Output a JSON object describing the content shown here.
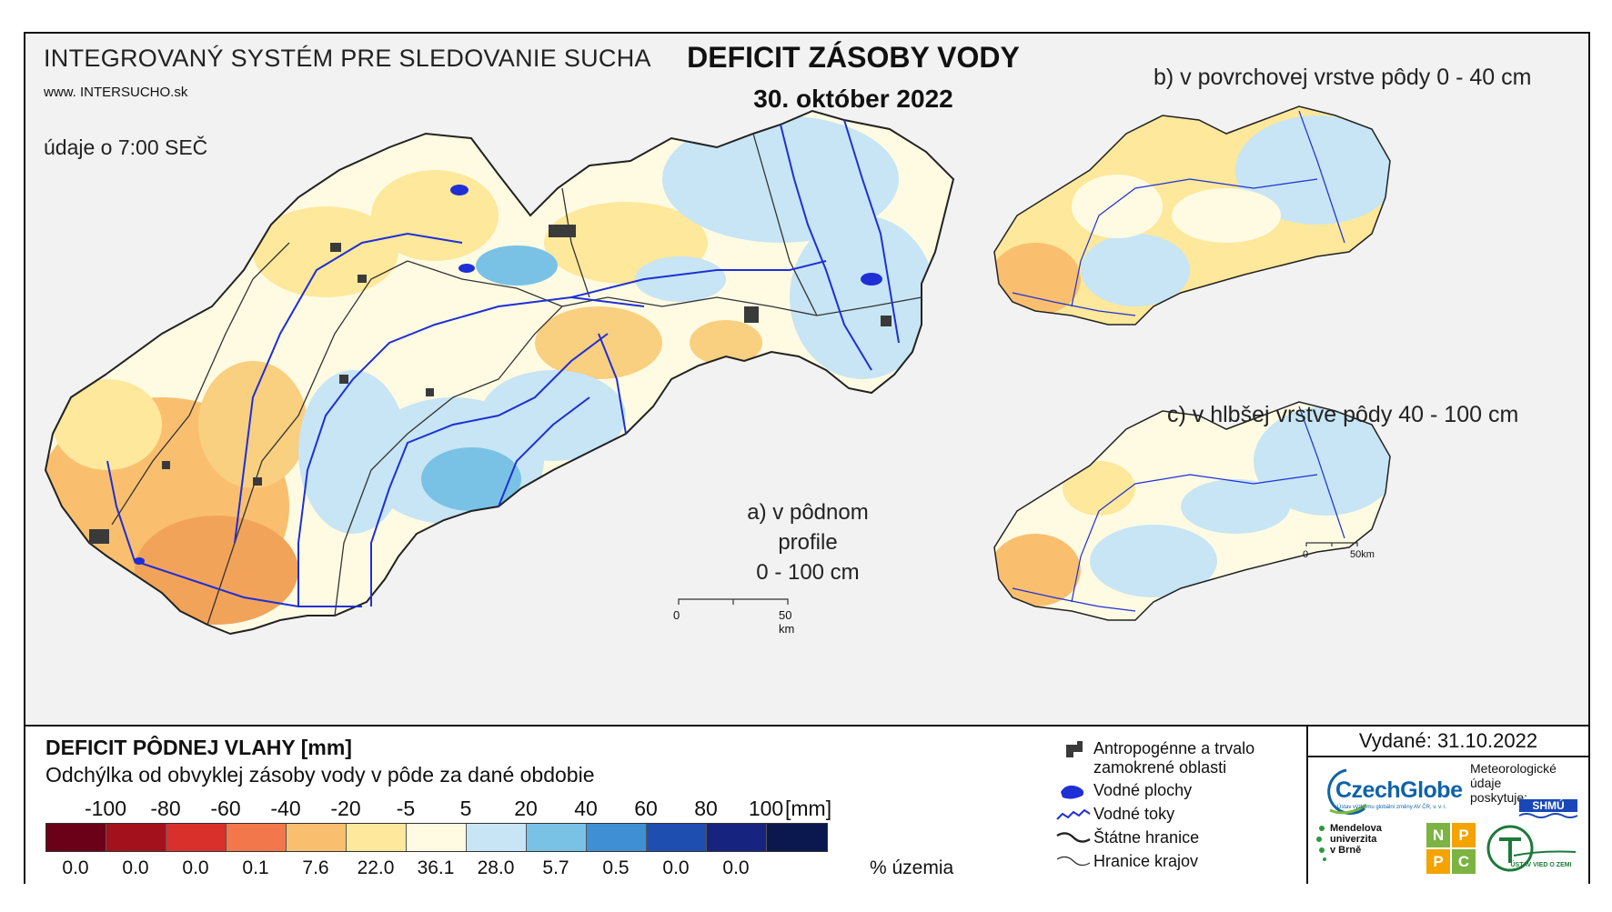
{
  "header": {
    "system_name": "INTEGROVANÝ SYSTÉM PRE SLEDOVANIE SUCHA",
    "url_prefix": "www.",
    "url_main": "INTERSUCHO.sk",
    "data_time": "údaje o 7:00 SEČ",
    "title": "DEFICIT ZÁSOBY VODY",
    "date": "30. október 2022"
  },
  "maps": {
    "a_label_line1": "a) v pôdnom profile",
    "a_label_line2": "0 - 100 cm",
    "b_label": "b) v povrchovej vrstve pôdy 0 - 40 cm",
    "c_label": "c) v hlbšej vrstve pôdy 40 - 100 cm",
    "scale_main": {
      "zero": "0",
      "end": "50 km"
    },
    "scale_small": {
      "zero": "0",
      "end": "50km"
    }
  },
  "legend": {
    "title": "DEFICIT PÔDNEJ VLAHY [mm]",
    "subtitle": "Odchýlka od obvyklej zásoby vody v pôde za dané obdobie",
    "ticks": [
      "-100",
      "-80",
      "-60",
      "-40",
      "-20",
      "-5",
      "5",
      "20",
      "40",
      "60",
      "80",
      "100"
    ],
    "unit": "[mm]",
    "classes": [
      {
        "color": "#6b0019",
        "pct": "0.0"
      },
      {
        "color": "#a3111d",
        "pct": "0.0"
      },
      {
        "color": "#d9302b",
        "pct": "0.0"
      },
      {
        "color": "#f2774a",
        "pct": "0.1"
      },
      {
        "color": "#f9bf6f",
        "pct": "7.6"
      },
      {
        "color": "#fde89b",
        "pct": "22.0"
      },
      {
        "color": "#fffbe3",
        "pct": "36.1"
      },
      {
        "color": "#c7e5f4",
        "pct": "28.0"
      },
      {
        "color": "#79c2e6",
        "pct": "5.7"
      },
      {
        "color": "#3f8fd4",
        "pct": "0.5"
      },
      {
        "color": "#1e4fb0",
        "pct": "0.0"
      },
      {
        "color": "#16237f",
        "pct": "0.0"
      },
      {
        "color": "#0b1850",
        "pct": ""
      }
    ],
    "pct_unit": "% územia"
  },
  "symbols": [
    {
      "icon": "urban-area-icon",
      "label_line1": "Antropogénne a trvalo",
      "label_line2": "zamokrené oblasti"
    },
    {
      "icon": "water-body-icon",
      "label_line1": "Vodné plochy",
      "label_line2": ""
    },
    {
      "icon": "river-icon",
      "label_line1": "Vodné toky",
      "label_line2": ""
    },
    {
      "icon": "state-border-icon",
      "label_line1": "Štátne hranice",
      "label_line2": ""
    },
    {
      "icon": "region-border-icon",
      "label_line1": "Hranice krajov",
      "label_line2": ""
    }
  ],
  "issued": "Vydané: 31.10.2022",
  "logos": {
    "czechglobe": "CzechGlobe",
    "czechglobe_small": "Ústav výzkumu globální změny AV ČR, v. v. i.",
    "meteo_line1": "Meteorologické",
    "meteo_line2": "údaje",
    "meteo_line3": "poskytuje:",
    "shmu": "SHMÚ",
    "mendel_line1": "Mendelova",
    "mendel_line2": "univerzita",
    "mendel_line3": "v Brně",
    "nppc": [
      "N",
      "P",
      "P",
      "C"
    ],
    "uvz": "ÚSTAV VIED O ZEMI"
  },
  "colors": {
    "river": "#1f2fd6",
    "urban": "#3a3a3a",
    "border": "#222222"
  }
}
